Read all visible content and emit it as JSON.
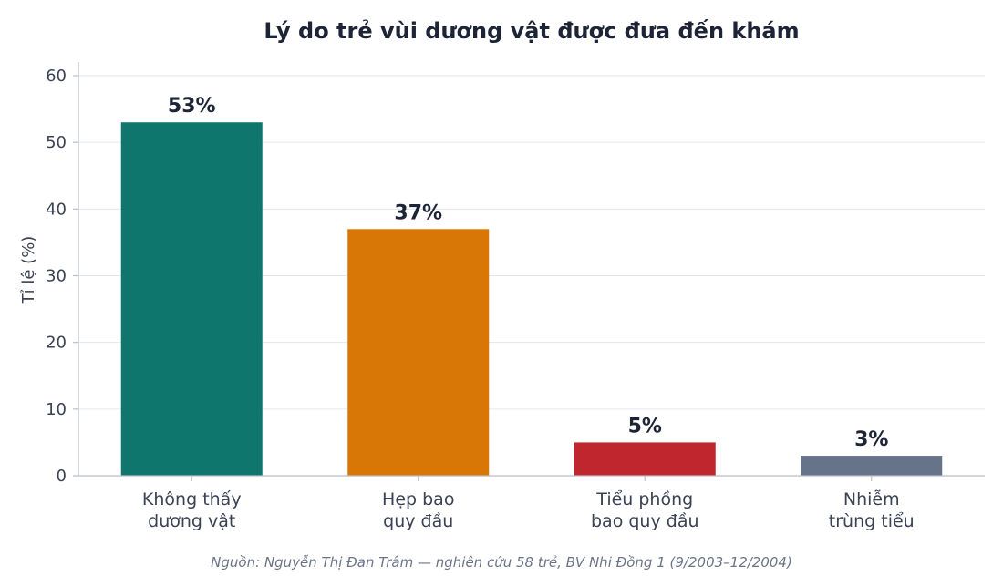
{
  "chart_data": {
    "type": "bar",
    "title": "Lý do trẻ vùi dương vật được đưa đến khám",
    "xlabel": "",
    "ylabel": "Tỉ lệ (%)",
    "ylim": [
      0,
      60
    ],
    "yticks": [
      0,
      10,
      20,
      30,
      40,
      50,
      60
    ],
    "grid": true,
    "categories": [
      [
        "Không thấy",
        "dương vật"
      ],
      [
        "Hẹp bao",
        "quy đầu"
      ],
      [
        "Tiểu phồng",
        "bao quy đầu"
      ],
      [
        "Nhiễm",
        "trùng tiểu"
      ]
    ],
    "values": [
      53,
      37,
      5,
      3
    ],
    "value_labels": [
      "53%",
      "37%",
      "5%",
      "3%"
    ],
    "colors": [
      "#0f766e",
      "#d97706",
      "#c0262d",
      "#667389"
    ],
    "source": "Nguồn: Nguyễn Thị Đan Trâm — nghiên cứu 58 trẻ, BV Nhi Đồng 1 (9/2003–12/2004)"
  }
}
